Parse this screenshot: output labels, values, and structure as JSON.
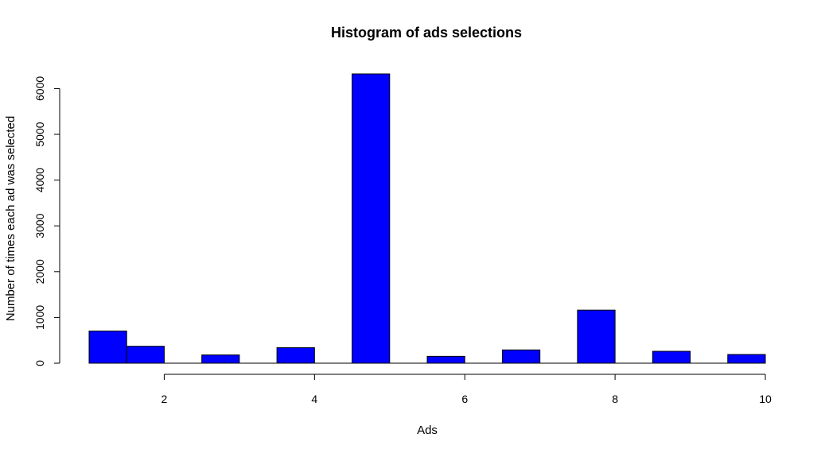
{
  "chart_data": {
    "type": "bar",
    "title": "Histogram of ads selections",
    "xlabel": "Ads",
    "ylabel": "Number of times each ad was selected",
    "bin_edges": [
      1,
      1.5,
      2,
      2.5,
      3,
      3.5,
      4,
      4.5,
      5,
      5.5,
      6,
      6.5,
      7,
      7.5,
      8,
      8.5,
      9,
      9.5,
      10
    ],
    "values": [
      703,
      370,
      0,
      180,
      0,
      340,
      0,
      6320,
      0,
      150,
      0,
      290,
      0,
      1160,
      0,
      260,
      0,
      190
    ],
    "xlim": [
      1,
      10
    ],
    "ylim": [
      0,
      6320
    ],
    "x_ticks": [
      2,
      4,
      6,
      8,
      10
    ],
    "y_ticks": [
      0,
      1000,
      2000,
      3000,
      4000,
      5000,
      6000
    ],
    "bar_color": "#0000FF",
    "grid": false,
    "legend": "none"
  }
}
